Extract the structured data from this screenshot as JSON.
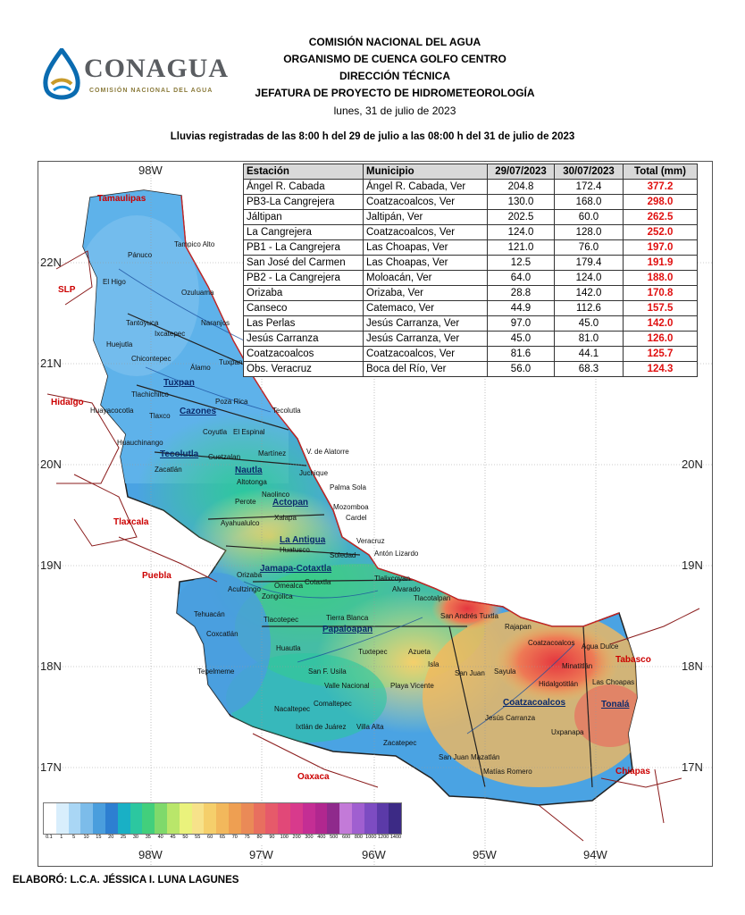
{
  "logo": {
    "name": "CONAGUA",
    "subtitle": "COMISIÓN NACIONAL DEL AGUA"
  },
  "header": {
    "lines": [
      "COMISIÓN NACIONAL DEL AGUA",
      "ORGANISMO DE CUENCA GOLFO CENTRO",
      "DIRECCIÓN TÉCNICA",
      "JEFATURA DE PROYECTO DE HIDROMETEOROLOGÍA"
    ],
    "date": "lunes, 31 de julio de 2023"
  },
  "subtitle": "Lluvias registradas de las 8:00 h del 29 de julio a las 08:00 h del 31 de julio de 2023",
  "table": {
    "headers": [
      "Estación",
      "Municipio",
      "29/07/2023",
      "30/07/2023",
      "Total (mm)"
    ],
    "rows": [
      [
        "Ángel R. Cabada",
        "Ángel R. Cabada, Ver",
        "204.8",
        "172.4",
        "377.2"
      ],
      [
        "PB3-La Cangrejera",
        "Coatzacoalcos, Ver",
        "130.0",
        "168.0",
        "298.0"
      ],
      [
        "Jáltipan",
        "Jaltipán, Ver",
        "202.5",
        "60.0",
        "262.5"
      ],
      [
        "La Cangrejera",
        "Coatzacoalcos, Ver",
        "124.0",
        "128.0",
        "252.0"
      ],
      [
        "PB1 - La Cangrejera",
        "Las Choapas, Ver",
        "121.0",
        "76.0",
        "197.0"
      ],
      [
        "San José del Carmen",
        "Las Choapas, Ver",
        "12.5",
        "179.4",
        "191.9"
      ],
      [
        "PB2 - La Cangrejera",
        "Moloacán, Ver",
        "64.0",
        "124.0",
        "188.0"
      ],
      [
        "Orizaba",
        "Orizaba, Ver",
        "28.8",
        "142.0",
        "170.8"
      ],
      [
        "Canseco",
        "Catemaco, Ver",
        "44.9",
        "112.6",
        "157.5"
      ],
      [
        "Las Perlas",
        "Jesús Carranza, Ver",
        "97.0",
        "45.0",
        "142.0"
      ],
      [
        "Jesús Carranza",
        "Jesús Carranza, Ver",
        "45.0",
        "81.0",
        "126.0"
      ],
      [
        "Coatzacoalcos",
        "Coatzacoalcos, Ver",
        "81.6",
        "44.1",
        "125.7"
      ],
      [
        "Obs. Veracruz",
        "Boca del Río, Ver",
        "56.0",
        "68.3",
        "124.3"
      ]
    ]
  },
  "map": {
    "lon_top": [
      "98W"
    ],
    "lon_bottom": [
      "98W",
      "97W",
      "96W",
      "95W",
      "94W"
    ],
    "lat_left": [
      "22N",
      "21N",
      "20N",
      "19N",
      "18N",
      "17N"
    ],
    "lat_right": [
      "20N",
      "19N",
      "18N",
      "17N"
    ],
    "states": [
      "Tamaulipas",
      "SLP",
      "Hidalgo",
      "Tlaxcala",
      "Puebla",
      "Oaxaca",
      "Chiapas",
      "Tabasco"
    ],
    "basins": [
      "Tuxpan",
      "Cazones",
      "Tecolutla",
      "Nautla",
      "Actopan",
      "La Antigua",
      "Jamapa-Cotaxtla",
      "Papaloapan",
      "Coatzacoalcos",
      "Tonalá"
    ],
    "places": [
      "Tampico Alto",
      "Pánuco",
      "El Higo",
      "Ozuluama",
      "Tantoyuca",
      "Naranjos",
      "Ixcatepec",
      "Huejutla",
      "Chicontepec",
      "Álamo",
      "Tuxpan",
      "Tlachichilco",
      "Huayacocotla",
      "Tlaxco",
      "Poza Rica",
      "Tecolutla",
      "Coyutla",
      "El Espinal",
      "Huauchinango",
      "Zacatlán",
      "Cuetzalan",
      "Martínez",
      "V. de Alatorre",
      "Juchique",
      "Altotonga",
      "Palma Sola",
      "Naolinco",
      "Perote",
      "Mozomboa",
      "Xalapa",
      "Cardel",
      "Ayahualulco",
      "Huatusco",
      "Veracruz",
      "Soledad",
      "Antón Lizardo",
      "Orizaba",
      "Omealca",
      "Cotaxtla",
      "Tlalixcoyan",
      "Alvarado",
      "Tlacotalpan",
      "Acultzingo",
      "Zongolica",
      "Tehuacán",
      "Tlacotepec",
      "Tierra Blanca",
      "San Andrés Tuxtla",
      "Rajapan",
      "Coatzacoalcos",
      "Agua Dulce",
      "Coxcatlán",
      "Huautla",
      "Tuxtepec",
      "Azueta",
      "Isla",
      "San Juan",
      "Sayula",
      "Minatitlán",
      "Hidalgotitlán",
      "Las Choapas",
      "Tepelmeme",
      "San F. Usila",
      "Valle Nacional",
      "Playa Vicente",
      "Jesús Carranza",
      "Uxpanapa",
      "Nacaltepec",
      "Comaltepec",
      "Ixtlán de Juárez",
      "Villa Alta",
      "Zacatepec",
      "San Juan Mazatlán",
      "Matías Romero"
    ]
  },
  "legend": {
    "labels": [
      "0.1",
      "1",
      "5",
      "10",
      "15",
      "20",
      "25",
      "30",
      "35",
      "40",
      "45",
      "50",
      "55",
      "60",
      "65",
      "70",
      "75",
      "80",
      "90",
      "100",
      "200",
      "300",
      "400",
      "500",
      "600",
      "800",
      "1000",
      "1200",
      "1400"
    ],
    "colors": [
      "#ffffff",
      "#d8eefc",
      "#a9d6f5",
      "#7cbcea",
      "#4a9edd",
      "#2d7fd1",
      "#19b0c5",
      "#2cc7a0",
      "#42cf7c",
      "#7fd96b",
      "#b9e66a",
      "#eaf27c",
      "#f7e28a",
      "#f5cf6b",
      "#f2b85c",
      "#ee9f52",
      "#ea8a57",
      "#e86f5f",
      "#e65a6a",
      "#e14878",
      "#d83a8c",
      "#c42e94",
      "#b1278f",
      "#8f2a8c",
      "#c37ad8",
      "#a05fd0",
      "#7d4cc2",
      "#5b3aa8",
      "#3c2a85"
    ]
  },
  "footer": "ELABORÓ: L.C.A. JÉSSICA I. LUNA LAGUNES",
  "colors": {
    "total_highlight": "#e01010",
    "table_header": "#d9d9d9"
  }
}
